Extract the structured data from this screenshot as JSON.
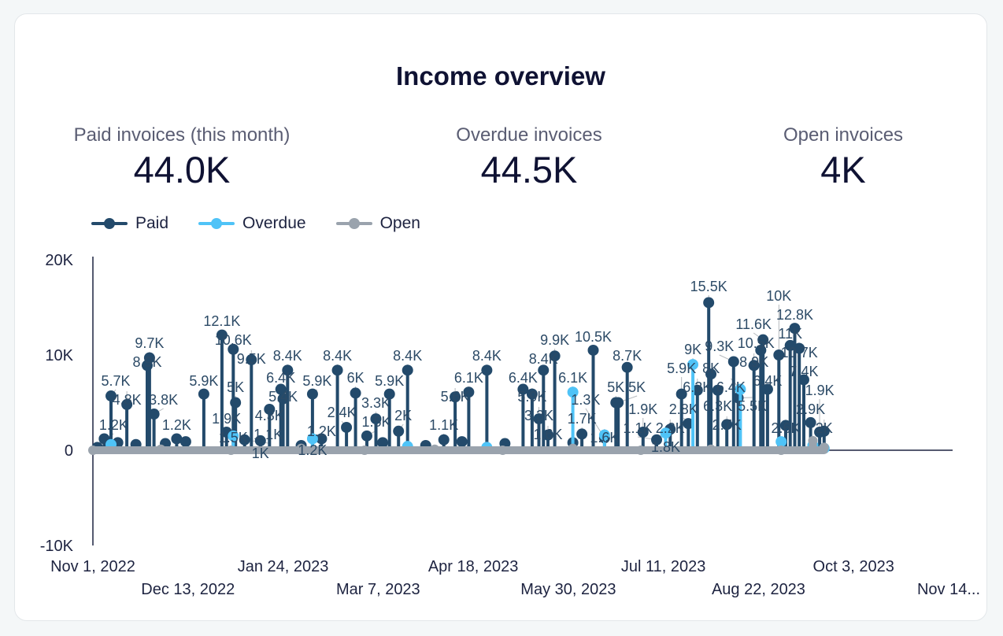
{
  "title": "Income overview",
  "kpis": [
    {
      "label": "Paid invoices (this month)",
      "value": "44.0K"
    },
    {
      "label": "Overdue invoices",
      "value": "44.5K"
    },
    {
      "label": "Open invoices",
      "value": "4K"
    }
  ],
  "chart_data": {
    "type": "line",
    "title": "",
    "xlabel": "",
    "ylabel": "",
    "ylim": [
      -10000,
      20000
    ],
    "yticks": [
      "20K",
      "10K",
      "0",
      "-10K"
    ],
    "ytick_values": [
      20000,
      10000,
      0,
      -10000
    ],
    "xlim": [
      "2022-11-01",
      "2023-11-14"
    ],
    "xticks": [
      {
        "date": "2022-11-01",
        "label": "Nov 1, 2022"
      },
      {
        "date": "2022-12-13",
        "label": "Dec 13, 2022"
      },
      {
        "date": "2023-01-24",
        "label": "Jan 24, 2023"
      },
      {
        "date": "2023-03-07",
        "label": "Mar 7, 2023"
      },
      {
        "date": "2023-04-18",
        "label": "Apr 18, 2023"
      },
      {
        "date": "2023-05-30",
        "label": "May 30, 2023"
      },
      {
        "date": "2023-07-11",
        "label": "Jul 11, 2023"
      },
      {
        "date": "2023-08-22",
        "label": "Aug 22, 2023"
      },
      {
        "date": "2023-10-03",
        "label": "Oct 3, 2023"
      },
      {
        "date": "2023-11-14",
        "label": "Nov 14..."
      }
    ],
    "grid": false,
    "legend_position": "top-left",
    "data_labels": true,
    "series": [
      {
        "name": "Paid",
        "color": "#234a6b",
        "points": [
          [
            "2022-11-03",
            300
          ],
          [
            "2022-11-06",
            1200
          ],
          [
            "2022-11-09",
            5700
          ],
          [
            "2022-11-12",
            800
          ],
          [
            "2022-11-16",
            4800
          ],
          [
            "2022-11-20",
            600
          ],
          [
            "2022-11-25",
            8900
          ],
          [
            "2022-11-26",
            9700
          ],
          [
            "2022-11-28",
            3800
          ],
          [
            "2022-12-03",
            700
          ],
          [
            "2022-12-08",
            1200
          ],
          [
            "2022-12-12",
            900
          ],
          [
            "2022-12-20",
            5900
          ],
          [
            "2022-12-28",
            12100
          ],
          [
            "2022-12-30",
            1900
          ],
          [
            "2023-01-02",
            10600
          ],
          [
            "2023-01-03",
            5000
          ],
          [
            "2023-01-07",
            1100
          ],
          [
            "2023-01-10",
            9500
          ],
          [
            "2023-01-14",
            1000
          ],
          [
            "2023-01-18",
            4300
          ],
          [
            "2023-01-23",
            6400
          ],
          [
            "2023-01-24",
            5400
          ],
          [
            "2023-01-26",
            8400
          ],
          [
            "2023-02-01",
            500
          ],
          [
            "2023-02-06",
            5900
          ],
          [
            "2023-02-10",
            1200
          ],
          [
            "2023-02-17",
            8400
          ],
          [
            "2023-02-21",
            2400
          ],
          [
            "2023-02-25",
            6000
          ],
          [
            "2023-03-02",
            1500
          ],
          [
            "2023-03-06",
            3300
          ],
          [
            "2023-03-09",
            800
          ],
          [
            "2023-03-12",
            5900
          ],
          [
            "2023-03-16",
            2000
          ],
          [
            "2023-03-20",
            8400
          ],
          [
            "2023-03-28",
            500
          ],
          [
            "2023-04-05",
            1100
          ],
          [
            "2023-04-10",
            5600
          ],
          [
            "2023-04-13",
            900
          ],
          [
            "2023-04-16",
            6100
          ],
          [
            "2023-04-24",
            8400
          ],
          [
            "2023-05-02",
            700
          ],
          [
            "2023-05-10",
            6400
          ],
          [
            "2023-05-14",
            5900
          ],
          [
            "2023-05-17",
            3300
          ],
          [
            "2023-05-19",
            8400
          ],
          [
            "2023-05-21",
            1600
          ],
          [
            "2023-05-24",
            9900
          ],
          [
            "2023-06-01",
            800
          ],
          [
            "2023-06-05",
            1700
          ],
          [
            "2023-06-10",
            10500
          ],
          [
            "2023-06-15",
            1300
          ],
          [
            "2023-06-20",
            5000
          ],
          [
            "2023-06-21",
            5000
          ],
          [
            "2023-06-25",
            8700
          ],
          [
            "2023-07-02",
            1900
          ],
          [
            "2023-07-08",
            1100
          ],
          [
            "2023-07-14",
            2200
          ],
          [
            "2023-07-19",
            5900
          ],
          [
            "2023-07-22",
            2800
          ],
          [
            "2023-07-26",
            6300
          ],
          [
            "2023-07-31",
            15500
          ],
          [
            "2023-08-01",
            8000
          ],
          [
            "2023-08-04",
            6300
          ],
          [
            "2023-08-08",
            2700
          ],
          [
            "2023-08-11",
            9300
          ],
          [
            "2023-08-13",
            5500
          ],
          [
            "2023-08-20",
            8900
          ],
          [
            "2023-08-23",
            10500
          ],
          [
            "2023-08-24",
            11600
          ],
          [
            "2023-08-26",
            6400
          ],
          [
            "2023-08-31",
            10000
          ],
          [
            "2023-09-03",
            2600
          ],
          [
            "2023-09-05",
            11000
          ],
          [
            "2023-09-07",
            12800
          ],
          [
            "2023-09-09",
            10700
          ],
          [
            "2023-09-11",
            7400
          ],
          [
            "2023-09-14",
            2900
          ],
          [
            "2023-09-18",
            1900
          ],
          [
            "2023-09-20",
            2000
          ]
        ]
      },
      {
        "name": "Overdue",
        "color": "#4fc3f7",
        "points": [
          [
            "2022-11-09",
            600
          ],
          [
            "2023-01-02",
            1500
          ],
          [
            "2023-02-06",
            1200
          ],
          [
            "2023-03-20",
            400
          ],
          [
            "2023-04-24",
            300
          ],
          [
            "2023-06-01",
            6100
          ],
          [
            "2023-06-15",
            1600
          ],
          [
            "2023-07-12",
            1800
          ],
          [
            "2023-07-24",
            9000
          ],
          [
            "2023-08-14",
            6400
          ],
          [
            "2023-09-01",
            900
          ],
          [
            "2023-09-15",
            500
          ],
          [
            "2023-09-20",
            200
          ]
        ]
      },
      {
        "name": "Open",
        "color": "#9aa3ad",
        "points": [
          [
            "2022-11-01",
            0
          ],
          [
            "2022-12-01",
            100
          ],
          [
            "2023-01-01",
            0
          ],
          [
            "2023-02-01",
            200
          ],
          [
            "2023-03-01",
            0
          ],
          [
            "2023-04-01",
            100
          ],
          [
            "2023-05-01",
            0
          ],
          [
            "2023-06-01",
            200
          ],
          [
            "2023-07-01",
            0
          ],
          [
            "2023-08-01",
            100
          ],
          [
            "2023-09-01",
            0
          ],
          [
            "2023-09-15",
            1000
          ],
          [
            "2023-09-20",
            300
          ]
        ]
      }
    ]
  }
}
